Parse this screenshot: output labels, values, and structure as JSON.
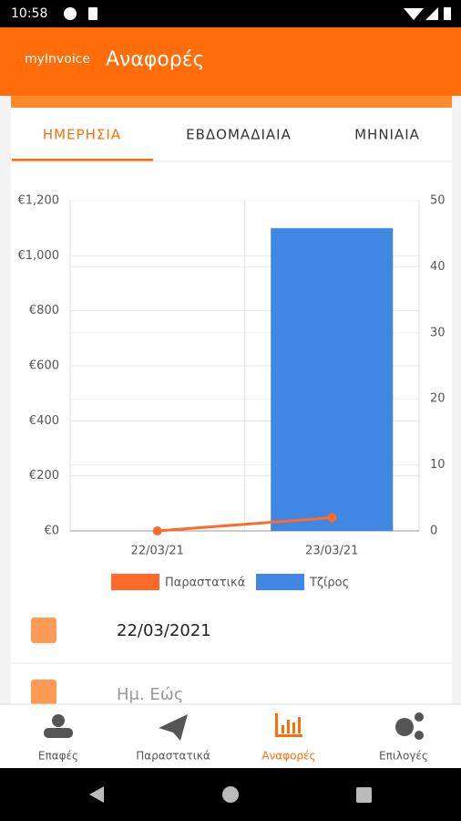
{
  "status_bar": {
    "time": "10:58"
  },
  "app_bar": {
    "brand": "myInvoice",
    "title": "Αναφορές"
  },
  "tabs": [
    "ΗΜΕΡΗΣΙΑ",
    "ΕΒΔΟΜΑΔΙΑΙΑ",
    "ΜΗΝΙΑΙΑ"
  ],
  "chart_data": {
    "type": "bar",
    "categories": [
      "22/03/21",
      "23/03/21"
    ],
    "series": [
      {
        "name": "Παραστατικά",
        "type": "line",
        "axis": "y2",
        "color": "#ff6a2b",
        "values": [
          0,
          2
        ]
      },
      {
        "name": "Τζίρος",
        "type": "bar",
        "color": "#3f87e3",
        "values": [
          0,
          1100
        ]
      }
    ],
    "ylim": [
      0,
      1200
    ],
    "yticks": [
      {
        "value": 0,
        "label": "€0"
      },
      {
        "value": 200,
        "label": "€200"
      },
      {
        "value": 400,
        "label": "€400"
      },
      {
        "value": 600,
        "label": "€600"
      },
      {
        "value": 800,
        "label": "€800"
      },
      {
        "value": 1000,
        "label": "€1,000"
      },
      {
        "value": 1200,
        "label": "€1,200"
      }
    ],
    "y2lim": [
      0,
      50
    ],
    "y2ticks": [
      0,
      10,
      20,
      30,
      40,
      50
    ],
    "grid": true,
    "legend": "bottom"
  },
  "fields": {
    "from": "22/03/2021",
    "to": "Ημ. Εώς"
  },
  "bottom_nav": [
    "Επαφές",
    "Παραστατικά",
    "Αναφορές",
    "Επιλογές"
  ]
}
